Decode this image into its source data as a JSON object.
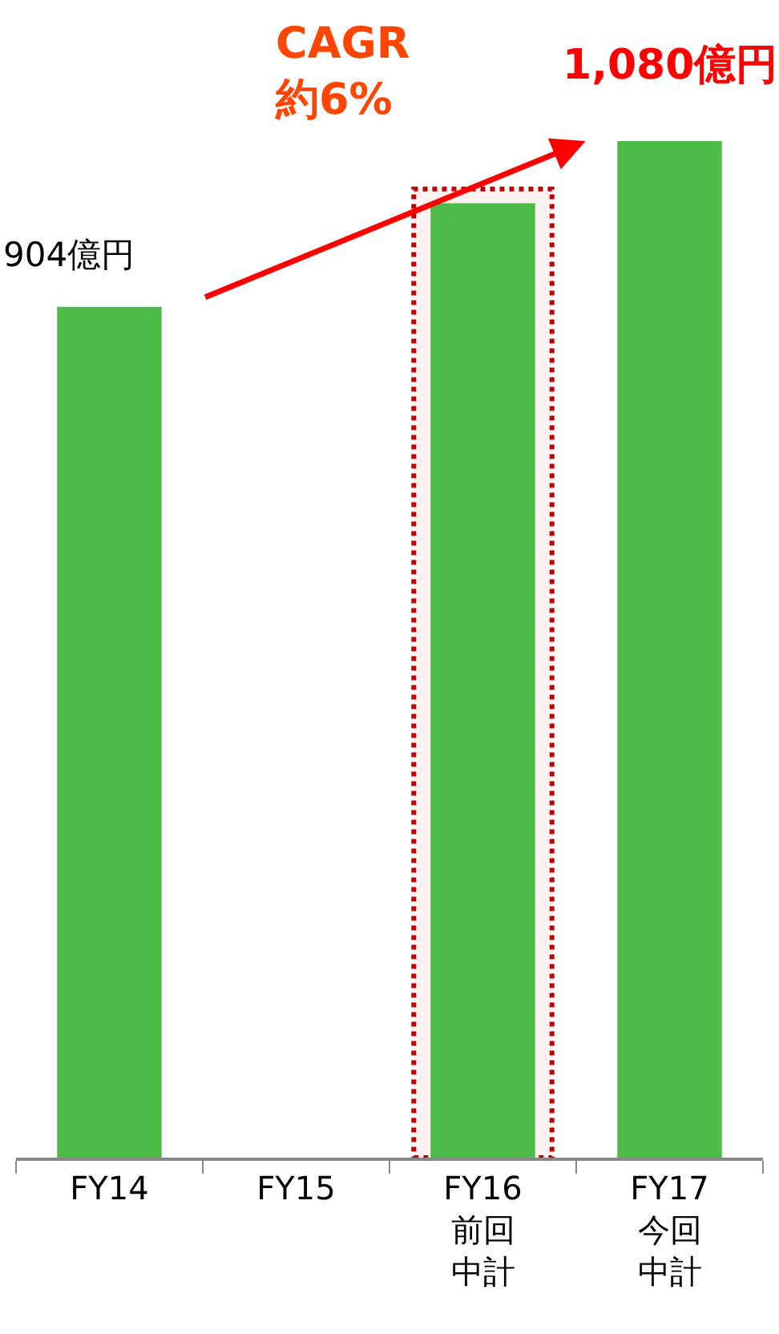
{
  "chart_data": {
    "type": "bar",
    "categories": [
      "FY14",
      "FY15",
      "FY16前回中計",
      "FY17今回中計"
    ],
    "values": [
      904,
      null,
      1014,
      1080
    ],
    "color": "#4cbb47",
    "value_labels": [
      "904億円",
      null,
      null,
      "1,080億円"
    ],
    "tick_labels": "x",
    "bands": [
      {
        "axis": "x",
        "from": "FY16前回中計",
        "to": "FY16前回中計",
        "color": "#c00000"
      }
    ],
    "annotations": [
      "CAGR\n約6%"
    ]
  }
}
